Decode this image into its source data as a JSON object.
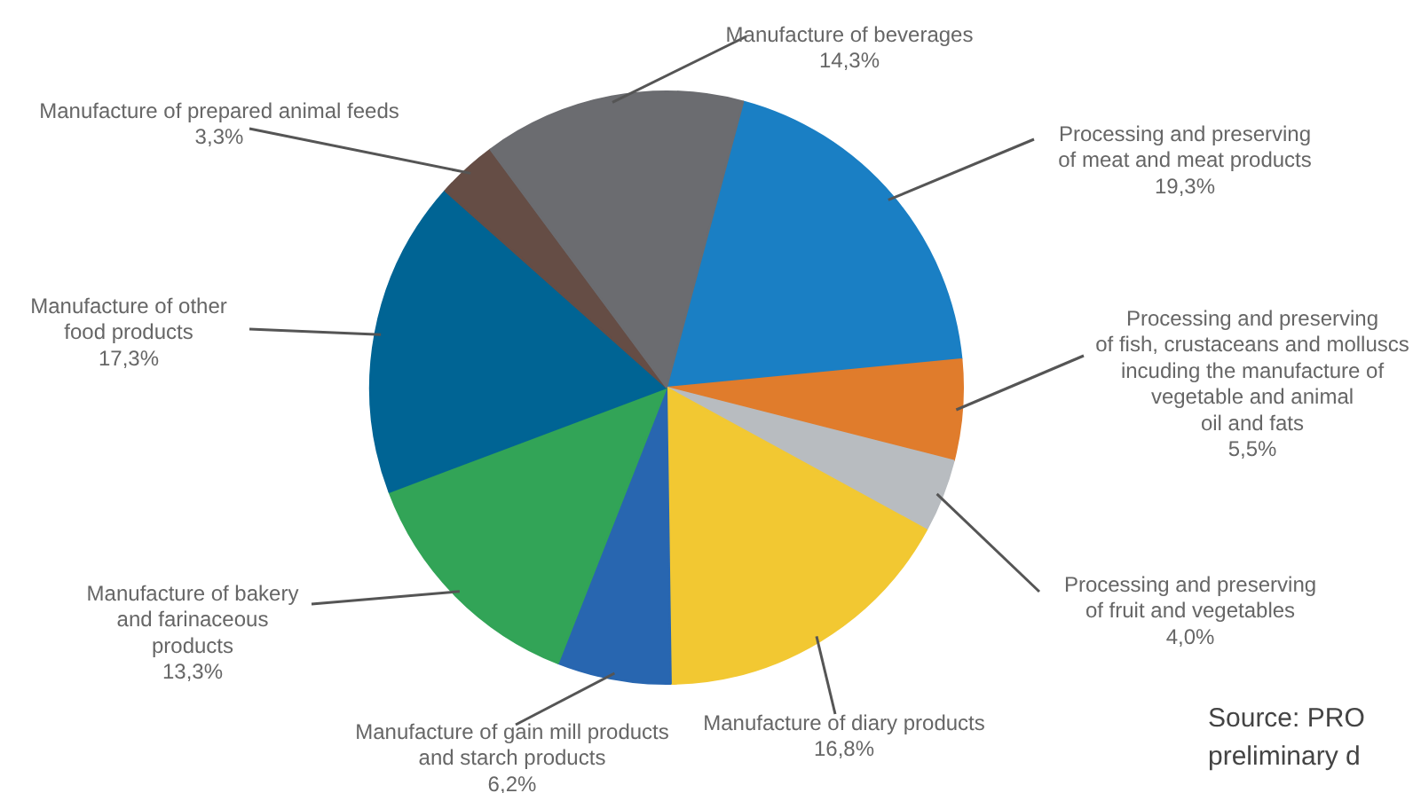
{
  "chart_data": {
    "type": "pie",
    "categories": [
      "Processing and preserving\nof meat and meat products",
      "Processing and preserving\nof fish, crustaceans and molluscs\nincuding the manufacture of\nvegetable and animal\noil and fats",
      "Processing and preserving\nof fruit and vegetables",
      "Manufacture of diary products",
      "Manufacture of gain mill products\nand starch products",
      "Manufacture of bakery\nand farinaceous\nproducts",
      "Manufacture of other\nfood products",
      "Manufacture of prepared animal feeds",
      "Manufacture of beverages"
    ],
    "values": [
      19.3,
      5.5,
      4.0,
      16.8,
      6.2,
      13.3,
      17.3,
      3.3,
      14.3
    ],
    "value_labels": [
      "19,3%",
      "5,5%",
      "4,0%",
      "16,8%",
      "6,2%",
      "13,3%",
      "17,3%",
      "3,3%",
      "14,3%"
    ],
    "colors": [
      "#1a7fc4",
      "#e07c2c",
      "#b8bcc0",
      "#f2c832",
      "#2866b0",
      "#32a457",
      "#006494",
      "#654d45",
      "#6b6c70"
    ],
    "annotations": [
      "Source: PRO\npreliminary d"
    ]
  }
}
